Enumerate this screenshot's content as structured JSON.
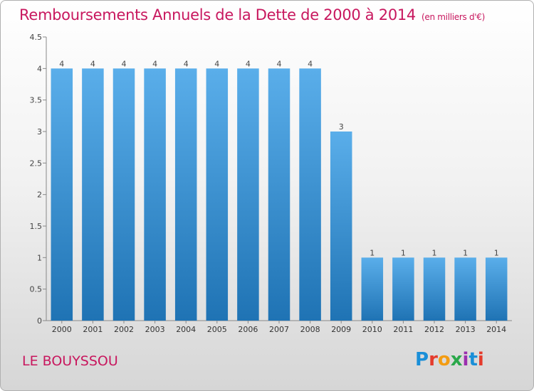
{
  "title": "Remboursements Annuels de la Dette de 2000 à 2014",
  "unit": "(en milliers d'€)",
  "commune": "LE BOUYSSOU",
  "logo": {
    "letters": [
      "P",
      "r",
      "o",
      "x",
      "i",
      "t",
      "i"
    ],
    "colors": [
      "#1a8fd8",
      "#e53b2c",
      "#f39c12",
      "#2aa84a",
      "#9b2fae",
      "#1a8fd8",
      "#e53b2c"
    ]
  },
  "colors": {
    "title": "#c8175e",
    "bar_light": "#5aaeea",
    "bar_dark": "#1f73b4"
  },
  "chart_data": {
    "type": "bar",
    "categories": [
      "2000",
      "2001",
      "2002",
      "2003",
      "2004",
      "2005",
      "2006",
      "2007",
      "2008",
      "2009",
      "2010",
      "2011",
      "2012",
      "2013",
      "2014"
    ],
    "values": [
      4,
      4,
      4,
      4,
      4,
      4,
      4,
      4,
      4,
      3,
      1,
      1,
      1,
      1,
      1
    ],
    "data_labels": [
      "4",
      "4",
      "4",
      "4",
      "4",
      "4",
      "4",
      "4",
      "4",
      "3",
      "1",
      "1",
      "1",
      "1",
      "1"
    ],
    "y_ticks": [
      0,
      0.5,
      1,
      1.5,
      2,
      2.5,
      3,
      3.5,
      4,
      4.5
    ],
    "ylim": [
      0,
      4.5
    ],
    "grid": false
  }
}
